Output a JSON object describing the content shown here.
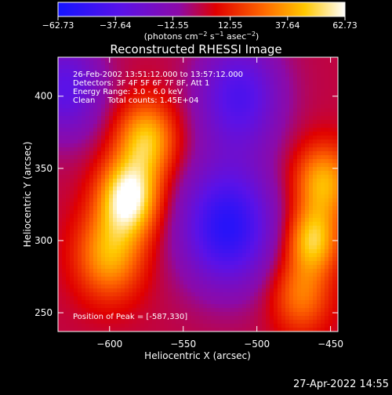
{
  "chart_data": {
    "type": "heatmap",
    "title": "Reconstructed RHESSI Image",
    "xlabel": "Heliocentric X (arcsec)",
    "ylabel": "Heliocentric Y (arcsec)",
    "xlim": [
      -635,
      -445
    ],
    "ylim": [
      237,
      427
    ],
    "x_ticks": [
      -600,
      -550,
      -500,
      -450
    ],
    "x_tick_labels": [
      "−600",
      "−550",
      "−500",
      "−450"
    ],
    "y_ticks": [
      250,
      300,
      350,
      400
    ],
    "y_tick_labels": [
      "250",
      "300",
      "350",
      "400"
    ],
    "colorbar": {
      "min": -62.73,
      "max": 62.73,
      "ticks": [
        -62.73,
        -37.64,
        -12.55,
        12.55,
        37.64,
        62.73
      ],
      "tick_labels": [
        "−62.73",
        "−37.64",
        "−12.55",
        "12.55",
        "37.64",
        "62.73"
      ],
      "units_text": "(photons cm",
      "units_sup1": "−2",
      "units_mid": " s",
      "units_sup2": "−1",
      "units_mid2": " asec",
      "units_sup3": "−2",
      "units_end": ")"
    },
    "sources": [
      {
        "x": -587,
        "y": 330,
        "value": 62.73
      },
      {
        "x": -575,
        "y": 370,
        "value": 45
      },
      {
        "x": -600,
        "y": 290,
        "value": 40
      },
      {
        "x": -462,
        "y": 300,
        "value": 45
      },
      {
        "x": -455,
        "y": 340,
        "value": 42
      },
      {
        "x": -470,
        "y": 262,
        "value": 30
      },
      {
        "x": -520,
        "y": 310,
        "value": -55
      },
      {
        "x": -512,
        "y": 400,
        "value": -40
      },
      {
        "x": -630,
        "y": 405,
        "value": -35
      }
    ],
    "annotations": [
      "26-Feb-2002 13:51:12.000 to 13:57:12.000",
      "Detectors: 3F 4F 5F 6F 7F 8F, Att 1",
      "Energy Range: 3.0 - 6.0 keV",
      "Clean     Total counts: 1.45E+04"
    ],
    "peak_text": "Position of Peak = [-587,330]"
  },
  "footer": {
    "timestamp": "27-Apr-2022 14:55"
  }
}
